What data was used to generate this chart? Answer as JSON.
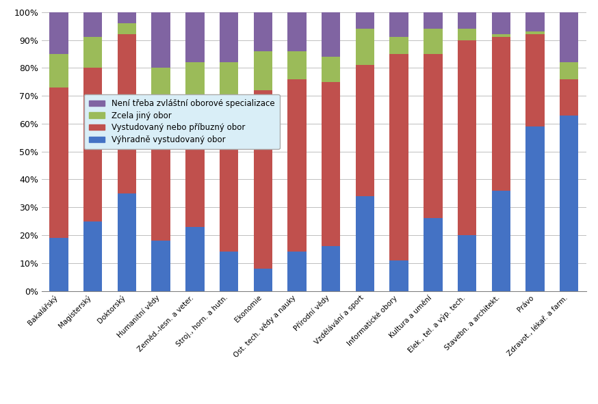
{
  "categories": [
    "Bakalářský",
    "Magisterský",
    "Doktorský",
    "Humanitní vědy",
    "Zeměd.-lesn. a veter.",
    "Stroj., horn. a hutn.",
    "Ekonomie",
    "Ost. tech. vědy a nauky",
    "Přírodní vědy",
    "Vzdělávání a sport",
    "Informatické obory",
    "Kultura a umění",
    "Elek., tel. a výp. tech.",
    "Stavebn. a architekt.",
    "Právo",
    "Zdravot., lékař. a farm."
  ],
  "series": {
    "Výhradně vystudovaný obor": [
      19,
      25,
      35,
      18,
      23,
      14,
      8,
      14,
      16,
      34,
      11,
      26,
      20,
      36,
      59,
      63
    ],
    "Vystudovaný nebo příbuzný obor": [
      54,
      55,
      57,
      48,
      46,
      55,
      64,
      62,
      59,
      47,
      74,
      59,
      70,
      55,
      33,
      13
    ],
    "Zcela jiný obor": [
      12,
      11,
      4,
      14,
      13,
      13,
      14,
      10,
      9,
      13,
      6,
      9,
      4,
      1,
      1,
      6
    ],
    "Není třeba zvláštní oborové specializace": [
      15,
      9,
      4,
      20,
      18,
      18,
      14,
      14,
      16,
      6,
      9,
      6,
      6,
      8,
      7,
      18
    ]
  },
  "colors": {
    "Výhradně vystudovaný obor": "#4472c4",
    "Vystudovaný nebo příbuzný obor": "#c0504d",
    "Zcela jiný obor": "#9bbb59",
    "Není třeba zvláštní oborové specializace": "#8064a2"
  },
  "legend_order": [
    "Není třeba zvláštní oborové specializace",
    "Zcela jiný obor",
    "Vystudovaný nebo příbuzný obor",
    "Výhradně vystudovaný obor"
  ],
  "ylim": [
    0,
    100
  ],
  "background_color": "#ffffff",
  "grid_color": "#bfbfbf",
  "legend_bg": "#d9eef7",
  "bar_width": 0.55
}
